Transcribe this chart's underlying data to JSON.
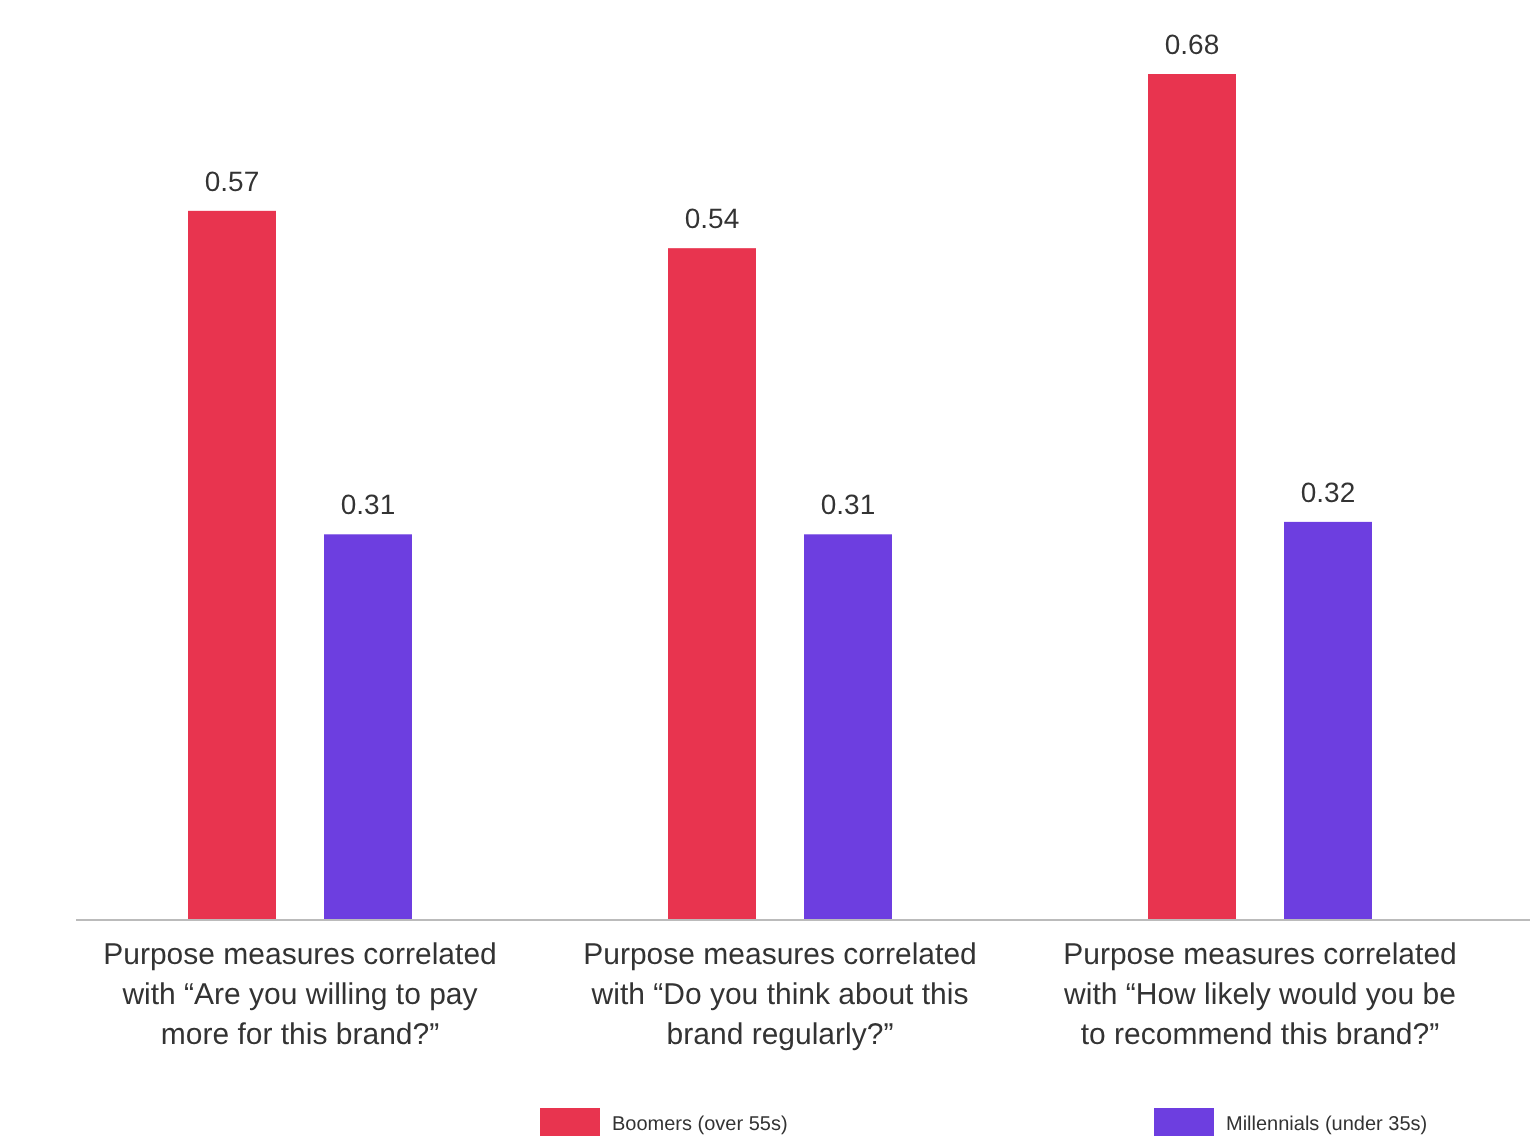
{
  "chart_data": {
    "type": "bar",
    "categories": [
      "Purpose measures correlated with “Are you willing to pay more for this brand?”",
      "Purpose measures correlated with “Do you think about this brand regularly?”",
      "Purpose measures correlated with “How likely would you be to recommend this brand?”"
    ],
    "series": [
      {
        "name": "Boomers (over 55s)",
        "color": "#e8344f",
        "values": [
          0.57,
          0.54,
          0.68
        ]
      },
      {
        "name": "Millennials (under 35s)",
        "color": "#6d3ee0",
        "values": [
          0.31,
          0.31,
          0.32
        ]
      }
    ],
    "data_labels": true,
    "legend": "bottom"
  }
}
